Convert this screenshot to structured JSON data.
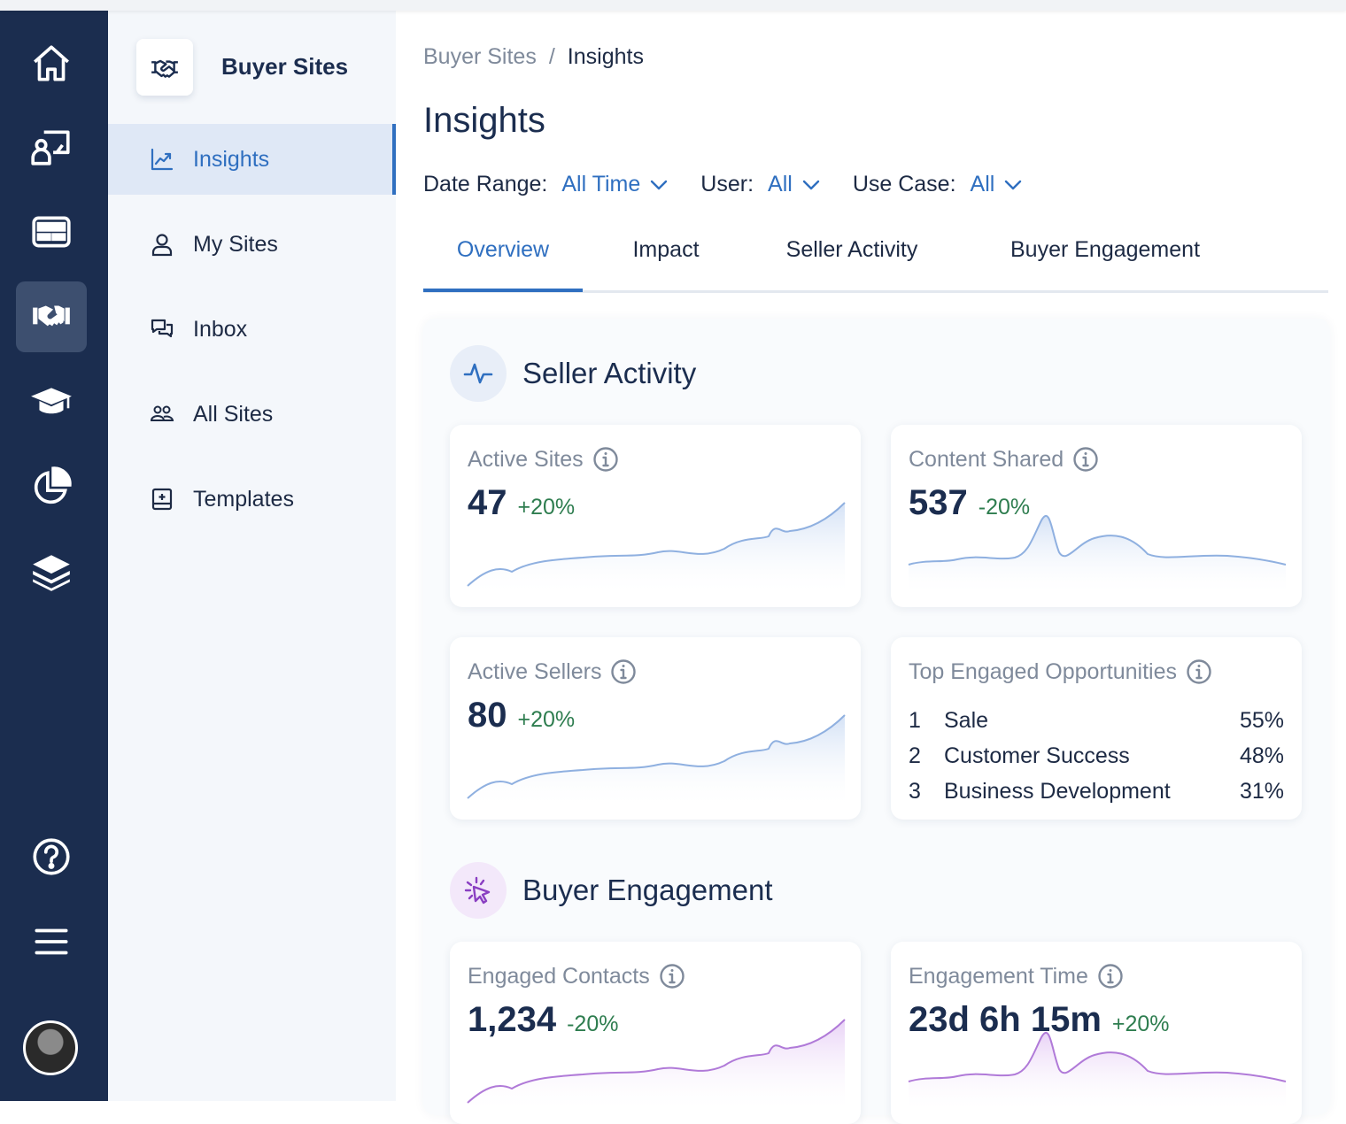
{
  "rail": {
    "items": [
      {
        "name": "home-icon",
        "active": false
      },
      {
        "name": "presenter-icon",
        "active": false
      },
      {
        "name": "card-icon",
        "active": false
      },
      {
        "name": "handshake-icon",
        "active": true
      },
      {
        "name": "graduation-cap-icon",
        "active": false
      },
      {
        "name": "pie-chart-icon",
        "active": false
      },
      {
        "name": "layers-icon",
        "active": false
      }
    ],
    "bottom": [
      {
        "name": "help-icon"
      },
      {
        "name": "menu-icon"
      }
    ]
  },
  "sidebar": {
    "title": "Buyer Sites",
    "items": [
      {
        "label": "Insights",
        "icon": "chart-line-icon",
        "active": true
      },
      {
        "label": "My Sites",
        "icon": "user-icon",
        "active": false
      },
      {
        "label": "Inbox",
        "icon": "chat-icon",
        "active": false
      },
      {
        "label": "All Sites",
        "icon": "users-icon",
        "active": false
      },
      {
        "label": "Templates",
        "icon": "template-icon",
        "active": false
      }
    ]
  },
  "breadcrumb": {
    "parent": "Buyer Sites",
    "separator": "/",
    "current": "Insights"
  },
  "page": {
    "title": "Insights"
  },
  "filters": [
    {
      "label": "Date Range:",
      "value": "All Time"
    },
    {
      "label": "User:",
      "value": "All"
    },
    {
      "label": "Use Case:",
      "value": "All"
    }
  ],
  "tabs": [
    {
      "label": "Overview",
      "active": true
    },
    {
      "label": "Impact",
      "active": false
    },
    {
      "label": "Seller Activity",
      "active": false
    },
    {
      "label": "Buyer Engagement",
      "active": false
    }
  ],
  "seller_activity": {
    "title": "Seller Activity",
    "cards": {
      "active_sites": {
        "title": "Active Sites",
        "value": "47",
        "delta": "+20%"
      },
      "content_shared": {
        "title": "Content Shared",
        "value": "537",
        "delta": "-20%"
      },
      "active_sellers": {
        "title": "Active Sellers",
        "value": "80",
        "delta": "+20%"
      }
    },
    "opportunities": {
      "title": "Top Engaged Opportunities",
      "rows": [
        {
          "rank": "1",
          "name": "Sale",
          "pct": "55%"
        },
        {
          "rank": "2",
          "name": "Customer Success",
          "pct": "48%"
        },
        {
          "rank": "3",
          "name": "Business Development",
          "pct": "31%"
        }
      ]
    }
  },
  "buyer_engagement": {
    "title": "Buyer Engagement",
    "cards": {
      "engaged_contacts": {
        "title": "Engaged Contacts",
        "value": "1,234",
        "delta": "-20%"
      },
      "engagement_time": {
        "title": "Engagement Time",
        "value": "23d 6h 15m",
        "delta": "+20%"
      }
    }
  },
  "colors": {
    "rail_bg": "#1b2d4f",
    "accent": "#2f6fc0",
    "positive": "#2e7d4f",
    "spark_blue": "#8fb0e0",
    "spark_purple": "#b07ad8"
  }
}
